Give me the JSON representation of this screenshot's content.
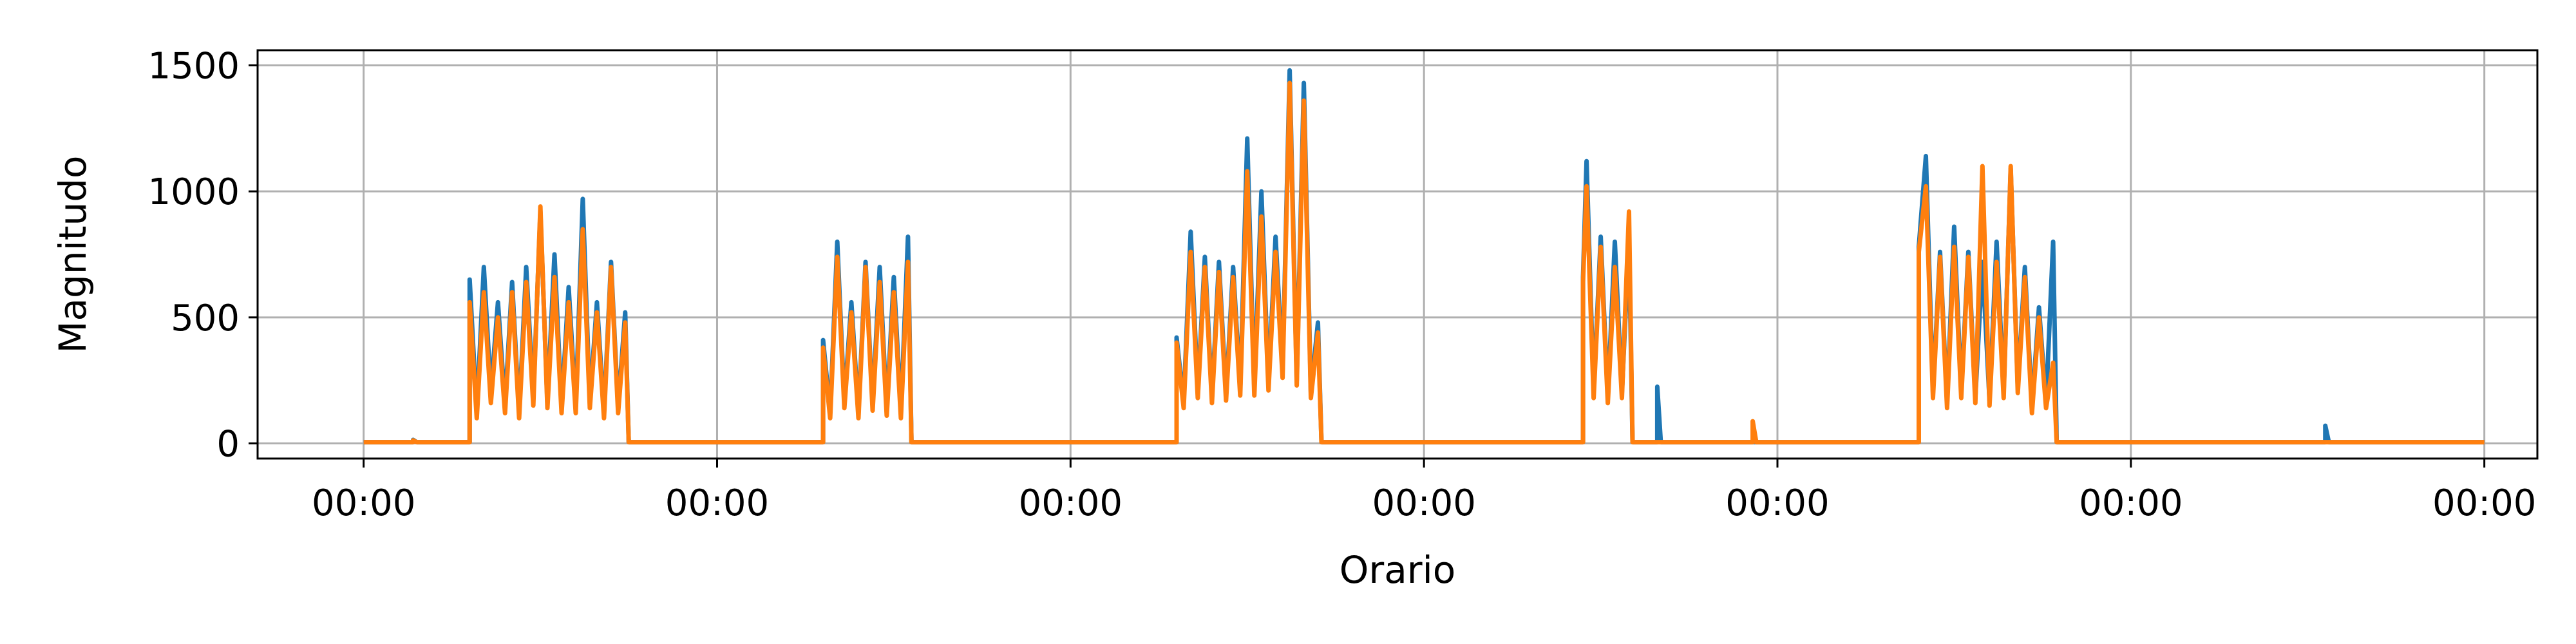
{
  "chart_data": {
    "type": "line",
    "title": "",
    "xlabel": "Orario",
    "ylabel": "Magnitudo",
    "ylim": [
      -60,
      1560
    ],
    "xlim": [
      -0.3,
      6.15
    ],
    "yticks": [
      0,
      500,
      1000,
      1500
    ],
    "ytick_labels": [
      "0",
      "500",
      "1000",
      "1500"
    ],
    "xticks": [
      0,
      1,
      2,
      3,
      4,
      5,
      6
    ],
    "xtick_labels": [
      "00:00",
      "00:00",
      "00:00",
      "00:00",
      "00:00",
      "00:00",
      "00:00"
    ],
    "grid": true,
    "legend": "none",
    "colors": {
      "series_1": "#1f77b4",
      "series_2": "#ff7f0e"
    },
    "series": [
      {
        "points": [
          [
            0.0,
            5
          ],
          [
            0.14,
            5
          ],
          [
            0.14,
            14
          ],
          [
            0.15,
            5
          ],
          [
            0.3,
            5
          ],
          [
            0.3,
            650
          ],
          [
            0.32,
            120
          ],
          [
            0.34,
            700
          ],
          [
            0.36,
            200
          ],
          [
            0.38,
            560
          ],
          [
            0.4,
            150
          ],
          [
            0.42,
            640
          ],
          [
            0.44,
            120
          ],
          [
            0.46,
            700
          ],
          [
            0.48,
            180
          ],
          [
            0.5,
            920
          ],
          [
            0.52,
            160
          ],
          [
            0.54,
            750
          ],
          [
            0.56,
            140
          ],
          [
            0.58,
            620
          ],
          [
            0.6,
            140
          ],
          [
            0.62,
            970
          ],
          [
            0.64,
            160
          ],
          [
            0.66,
            560
          ],
          [
            0.68,
            120
          ],
          [
            0.7,
            720
          ],
          [
            0.72,
            140
          ],
          [
            0.74,
            520
          ],
          [
            0.75,
            5
          ],
          [
            1.3,
            5
          ],
          [
            1.3,
            410
          ],
          [
            1.32,
            120
          ],
          [
            1.34,
            800
          ],
          [
            1.36,
            160
          ],
          [
            1.38,
            560
          ],
          [
            1.4,
            120
          ],
          [
            1.42,
            720
          ],
          [
            1.44,
            150
          ],
          [
            1.46,
            700
          ],
          [
            1.48,
            130
          ],
          [
            1.5,
            660
          ],
          [
            1.52,
            120
          ],
          [
            1.54,
            820
          ],
          [
            1.55,
            5
          ],
          [
            2.3,
            5
          ],
          [
            2.3,
            420
          ],
          [
            2.32,
            160
          ],
          [
            2.34,
            840
          ],
          [
            2.36,
            200
          ],
          [
            2.38,
            740
          ],
          [
            2.4,
            180
          ],
          [
            2.42,
            720
          ],
          [
            2.44,
            190
          ],
          [
            2.46,
            700
          ],
          [
            2.48,
            210
          ],
          [
            2.5,
            1210
          ],
          [
            2.52,
            210
          ],
          [
            2.54,
            1000
          ],
          [
            2.56,
            230
          ],
          [
            2.58,
            820
          ],
          [
            2.6,
            290
          ],
          [
            2.62,
            1480
          ],
          [
            2.64,
            250
          ],
          [
            2.66,
            1430
          ],
          [
            2.68,
            200
          ],
          [
            2.7,
            480
          ],
          [
            2.71,
            5
          ],
          [
            3.45,
            5
          ],
          [
            3.45,
            660
          ],
          [
            3.46,
            1120
          ],
          [
            3.48,
            200
          ],
          [
            3.5,
            820
          ],
          [
            3.52,
            180
          ],
          [
            3.54,
            800
          ],
          [
            3.56,
            200
          ],
          [
            3.58,
            810
          ],
          [
            3.59,
            5
          ],
          [
            3.66,
            5
          ],
          [
            3.66,
            225
          ],
          [
            3.67,
            5
          ],
          [
            4.4,
            5
          ],
          [
            4.4,
            780
          ],
          [
            4.42,
            1140
          ],
          [
            4.44,
            200
          ],
          [
            4.46,
            760
          ],
          [
            4.48,
            160
          ],
          [
            4.5,
            860
          ],
          [
            4.52,
            200
          ],
          [
            4.54,
            760
          ],
          [
            4.56,
            180
          ],
          [
            4.58,
            720
          ],
          [
            4.6,
            170
          ],
          [
            4.62,
            800
          ],
          [
            4.64,
            200
          ],
          [
            4.66,
            1090
          ],
          [
            4.68,
            220
          ],
          [
            4.7,
            700
          ],
          [
            4.72,
            140
          ],
          [
            4.74,
            540
          ],
          [
            4.76,
            160
          ],
          [
            4.78,
            800
          ],
          [
            4.79,
            5
          ],
          [
            5.55,
            5
          ],
          [
            5.55,
            70
          ],
          [
            5.56,
            5
          ],
          [
            6.0,
            5
          ]
        ]
      },
      {
        "points": [
          [
            0.0,
            5
          ],
          [
            0.14,
            5
          ],
          [
            0.14,
            12
          ],
          [
            0.15,
            5
          ],
          [
            0.3,
            5
          ],
          [
            0.3,
            560
          ],
          [
            0.32,
            100
          ],
          [
            0.34,
            600
          ],
          [
            0.36,
            160
          ],
          [
            0.38,
            500
          ],
          [
            0.4,
            120
          ],
          [
            0.42,
            600
          ],
          [
            0.44,
            100
          ],
          [
            0.46,
            640
          ],
          [
            0.48,
            150
          ],
          [
            0.5,
            940
          ],
          [
            0.52,
            140
          ],
          [
            0.54,
            660
          ],
          [
            0.56,
            120
          ],
          [
            0.58,
            560
          ],
          [
            0.6,
            120
          ],
          [
            0.62,
            850
          ],
          [
            0.64,
            140
          ],
          [
            0.66,
            520
          ],
          [
            0.68,
            100
          ],
          [
            0.7,
            700
          ],
          [
            0.72,
            120
          ],
          [
            0.74,
            480
          ],
          [
            0.75,
            5
          ],
          [
            1.3,
            5
          ],
          [
            1.3,
            380
          ],
          [
            1.32,
            100
          ],
          [
            1.34,
            740
          ],
          [
            1.36,
            140
          ],
          [
            1.38,
            520
          ],
          [
            1.4,
            100
          ],
          [
            1.42,
            700
          ],
          [
            1.44,
            130
          ],
          [
            1.46,
            640
          ],
          [
            1.48,
            110
          ],
          [
            1.5,
            600
          ],
          [
            1.52,
            100
          ],
          [
            1.54,
            720
          ],
          [
            1.55,
            5
          ],
          [
            2.3,
            5
          ],
          [
            2.3,
            400
          ],
          [
            2.32,
            140
          ],
          [
            2.34,
            760
          ],
          [
            2.36,
            180
          ],
          [
            2.38,
            700
          ],
          [
            2.4,
            160
          ],
          [
            2.42,
            680
          ],
          [
            2.44,
            170
          ],
          [
            2.46,
            660
          ],
          [
            2.48,
            190
          ],
          [
            2.5,
            1080
          ],
          [
            2.52,
            190
          ],
          [
            2.54,
            900
          ],
          [
            2.56,
            210
          ],
          [
            2.58,
            760
          ],
          [
            2.6,
            260
          ],
          [
            2.62,
            1430
          ],
          [
            2.64,
            230
          ],
          [
            2.66,
            1360
          ],
          [
            2.68,
            180
          ],
          [
            2.7,
            440
          ],
          [
            2.71,
            5
          ],
          [
            3.45,
            5
          ],
          [
            3.45,
            640
          ],
          [
            3.46,
            1020
          ],
          [
            3.48,
            180
          ],
          [
            3.5,
            780
          ],
          [
            3.52,
            160
          ],
          [
            3.54,
            700
          ],
          [
            3.56,
            180
          ],
          [
            3.58,
            920
          ],
          [
            3.59,
            5
          ],
          [
            3.93,
            5
          ],
          [
            3.93,
            88
          ],
          [
            3.94,
            5
          ],
          [
            4.4,
            5
          ],
          [
            4.4,
            760
          ],
          [
            4.42,
            1020
          ],
          [
            4.44,
            180
          ],
          [
            4.46,
            740
          ],
          [
            4.48,
            140
          ],
          [
            4.5,
            780
          ],
          [
            4.52,
            180
          ],
          [
            4.54,
            740
          ],
          [
            4.56,
            160
          ],
          [
            4.58,
            1100
          ],
          [
            4.6,
            150
          ],
          [
            4.62,
            720
          ],
          [
            4.64,
            180
          ],
          [
            4.66,
            1100
          ],
          [
            4.68,
            200
          ],
          [
            4.7,
            660
          ],
          [
            4.72,
            120
          ],
          [
            4.74,
            500
          ],
          [
            4.76,
            140
          ],
          [
            4.78,
            320
          ],
          [
            4.79,
            5
          ],
          [
            6.0,
            5
          ]
        ]
      }
    ]
  }
}
